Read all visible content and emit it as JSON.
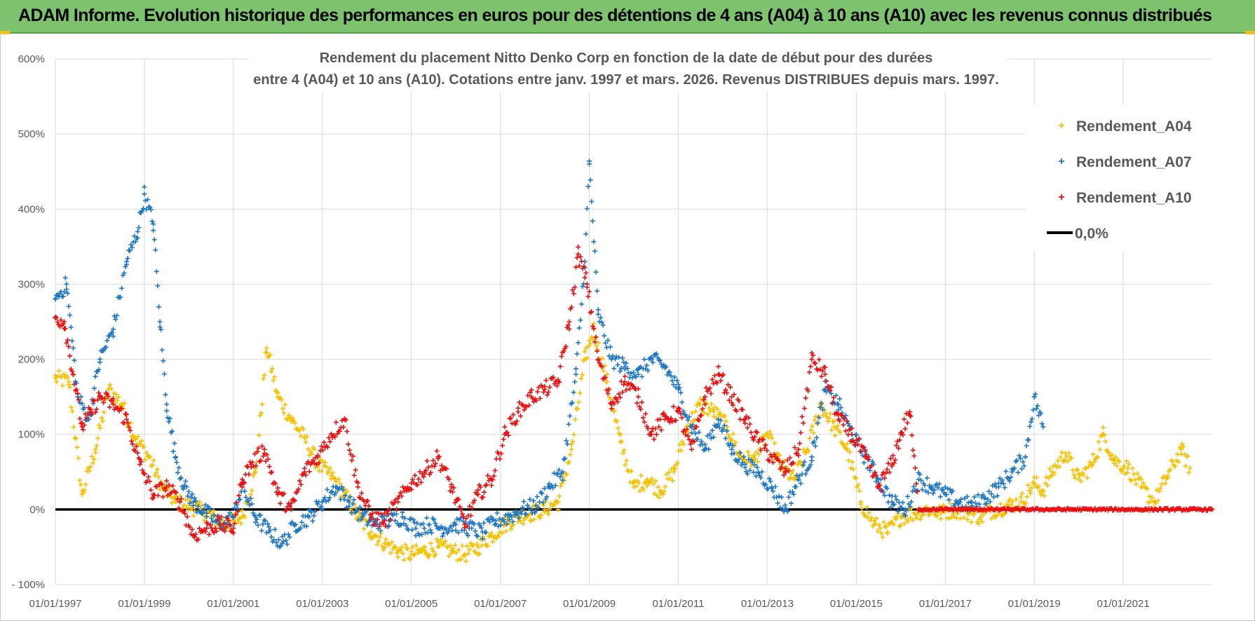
{
  "banner": {
    "text": "ADAM Informe. Evolution historique des performances en euros pour des détentions de 4 ans (A04) à 10 ans (A10) avec les revenus connus distribués"
  },
  "chart_data": {
    "type": "scatter",
    "title_lines": [
      "Rendement du placement Nitto Denko Corp en fonction de la date de début pour des durées",
      "entre 4 (A04) et 10 ans (A10).  Cotations entre janv. 1997 et mars. 2026. Revenus DISTRIBUES depuis mars. 1997."
    ],
    "xlabel": "",
    "ylabel": "",
    "xlim": [
      1997.0,
      2023.0
    ],
    "ylim": [
      -100,
      600
    ],
    "x_ticks": [
      1997,
      1999,
      2001,
      2003,
      2005,
      2007,
      2009,
      2011,
      2013,
      2015,
      2017,
      2019,
      2021
    ],
    "x_tick_labels": [
      "01/01/1997",
      "01/01/1999",
      "01/01/2001",
      "01/01/2003",
      "01/01/2005",
      "01/01/2007",
      "01/01/2009",
      "01/01/2011",
      "01/01/2013",
      "01/01/2015",
      "01/01/2017",
      "01/01/2019",
      "01/01/2021"
    ],
    "y_ticks": [
      -100,
      0,
      100,
      200,
      300,
      400,
      500,
      600
    ],
    "y_tick_labels": [
      "- 100%",
      "0%",
      "100%",
      "200%",
      "300%",
      "400%",
      "500%",
      "600%"
    ],
    "grid": true,
    "legend_position": "top-right",
    "series": [
      {
        "name": "Rendement_A04",
        "color": "#f5c000",
        "marker": "plus",
        "x": [
          1997.0,
          1997.3,
          1997.6,
          1997.9,
          1998.2,
          1998.5,
          1998.8,
          1999.1,
          1999.4,
          1999.7,
          2000.0,
          2000.4,
          2000.8,
          2001.2,
          2001.5,
          2001.75,
          2002.0,
          2002.3,
          2002.6,
          2002.9,
          2003.2,
          2003.5,
          2003.8,
          2004.1,
          2004.4,
          2004.7,
          2005.0,
          2005.3,
          2005.6,
          2005.9,
          2006.2,
          2006.5,
          2006.8,
          2007.1,
          2007.4,
          2007.7,
          2008.0,
          2008.3,
          2008.6,
          2008.9,
          2009.1,
          2009.4,
          2009.7,
          2010.0,
          2010.3,
          2010.6,
          2010.9,
          2011.2,
          2011.5,
          2011.8,
          2012.1,
          2012.4,
          2012.7,
          2013.0,
          2013.3,
          2013.6,
          2013.9,
          2014.2,
          2014.5,
          2014.8,
          2015.1,
          2015.4,
          2015.7,
          2016.0,
          2016.3,
          2016.6,
          2016.9,
          2017.2,
          2017.5,
          2017.8,
          2018.1,
          2018.4,
          2018.7,
          2019.0,
          2019.2,
          2019.4,
          2019.7,
          2020.0,
          2020.3,
          2020.55,
          2020.8,
          2021.1,
          2021.4,
          2021.7,
          2022.0,
          2022.3,
          2022.5
        ],
        "y": [
          175,
          170,
          20,
          80,
          160,
          140,
          95,
          70,
          30,
          10,
          5,
          -5,
          -20,
          -10,
          50,
          215,
          150,
          120,
          95,
          60,
          45,
          20,
          -10,
          -30,
          -45,
          -55,
          -60,
          -55,
          -50,
          -55,
          -60,
          -50,
          -35,
          -20,
          -10,
          -5,
          0,
          10,
          80,
          200,
          240,
          170,
          90,
          30,
          40,
          25,
          50,
          110,
          140,
          130,
          110,
          70,
          65,
          100,
          60,
          40,
          80,
          140,
          110,
          80,
          10,
          -20,
          -30,
          -10,
          -5,
          0,
          -5,
          0,
          -5,
          -10,
          0,
          5,
          10,
          35,
          25,
          50,
          75,
          40,
          60,
          100,
          65,
          55,
          30,
          10,
          45,
          80,
          55
        ]
      },
      {
        "name": "Rendement_A07",
        "color": "#1f77c4",
        "marker": "plus",
        "x": [
          1997.0,
          1997.25,
          1997.5,
          1997.75,
          1998.0,
          1998.3,
          1998.6,
          1998.85,
          1999.0,
          1999.2,
          1999.35,
          1999.5,
          1999.7,
          1999.9,
          2000.1,
          2000.4,
          2000.7,
          2001.0,
          2001.2,
          2001.5,
          2001.8,
          2002.1,
          2002.4,
          2002.7,
          2003.0,
          2003.3,
          2003.6,
          2003.9,
          2004.2,
          2004.5,
          2004.8,
          2005.1,
          2005.4,
          2005.7,
          2006.0,
          2006.3,
          2006.6,
          2006.9,
          2007.2,
          2007.5,
          2007.8,
          2008.1,
          2008.4,
          2008.7,
          2008.9,
          2009.0,
          2009.2,
          2009.5,
          2009.8,
          2010.1,
          2010.4,
          2010.7,
          2011.0,
          2011.3,
          2011.6,
          2011.9,
          2012.2,
          2012.5,
          2012.8,
          2013.1,
          2013.4,
          2013.7,
          2014.0,
          2014.3,
          2014.6,
          2014.9,
          2015.2,
          2015.5,
          2015.8,
          2016.1,
          2016.4,
          2016.7,
          2017.0,
          2017.3,
          2017.6,
          2017.9,
          2018.2,
          2018.5,
          2018.8,
          2019.0,
          2019.2
        ],
        "y": [
          280,
          300,
          150,
          120,
          200,
          240,
          330,
          370,
          420,
          380,
          250,
          140,
          70,
          30,
          10,
          -5,
          -20,
          -10,
          30,
          -10,
          -30,
          -45,
          -20,
          -10,
          10,
          30,
          10,
          -10,
          -20,
          -15,
          -10,
          -25,
          -20,
          -25,
          -20,
          -25,
          -30,
          -15,
          -10,
          0,
          5,
          30,
          50,
          180,
          330,
          460,
          260,
          200,
          190,
          180,
          200,
          190,
          160,
          110,
          80,
          120,
          80,
          60,
          50,
          30,
          0,
          40,
          70,
          160,
          140,
          100,
          70,
          40,
          10,
          0,
          40,
          30,
          20,
          10,
          5,
          15,
          30,
          50,
          70,
          150,
          110
        ]
      },
      {
        "name": "Rendement_A10",
        "color": "#e81010",
        "marker": "plus",
        "x": [
          1997.0,
          1997.2,
          1997.4,
          1997.6,
          1997.8,
          1998.0,
          1998.3,
          1998.6,
          1998.9,
          1999.2,
          1999.5,
          1999.8,
          2000.1,
          2000.4,
          2000.7,
          2001.0,
          2001.2,
          2001.4,
          2001.7,
          2002.0,
          2002.3,
          2002.6,
          2002.9,
          2003.2,
          2003.5,
          2003.8,
          2004.1,
          2004.4,
          2004.7,
          2005.0,
          2005.3,
          2005.6,
          2005.9,
          2006.2,
          2006.5,
          2006.8,
          2007.1,
          2007.4,
          2007.7,
          2008.0,
          2008.3,
          2008.55,
          2008.75,
          2008.95,
          2009.2,
          2009.5,
          2009.8,
          2010.1,
          2010.4,
          2010.7,
          2011.0,
          2011.3,
          2011.6,
          2011.9,
          2012.2,
          2012.5,
          2012.8,
          2013.1,
          2013.4,
          2013.7,
          2014.0,
          2014.3,
          2014.6,
          2014.9,
          2015.2,
          2015.5,
          2015.8,
          2016.0,
          2016.2,
          2016.4,
          2016.8,
          2017.5,
          2018.5,
          2019.5,
          2020.5,
          2021.5,
          2022.5,
          2023.0
        ],
        "y": [
          255,
          250,
          180,
          110,
          130,
          150,
          140,
          120,
          60,
          20,
          30,
          10,
          -35,
          -25,
          -20,
          -25,
          40,
          60,
          80,
          20,
          0,
          50,
          70,
          100,
          120,
          30,
          -10,
          -15,
          10,
          35,
          50,
          70,
          30,
          -20,
          20,
          40,
          100,
          130,
          150,
          160,
          170,
          250,
          340,
          300,
          200,
          140,
          170,
          150,
          100,
          120,
          130,
          80,
          150,
          180,
          150,
          120,
          90,
          70,
          50,
          80,
          200,
          180,
          120,
          100,
          70,
          30,
          60,
          100,
          130,
          0,
          0,
          0,
          0,
          0,
          0,
          0,
          0,
          0
        ]
      },
      {
        "name": "0,0%",
        "color": "#000000",
        "marker": "line",
        "x": [
          1997.0,
          2023.0
        ],
        "y": [
          0,
          0
        ]
      }
    ]
  }
}
